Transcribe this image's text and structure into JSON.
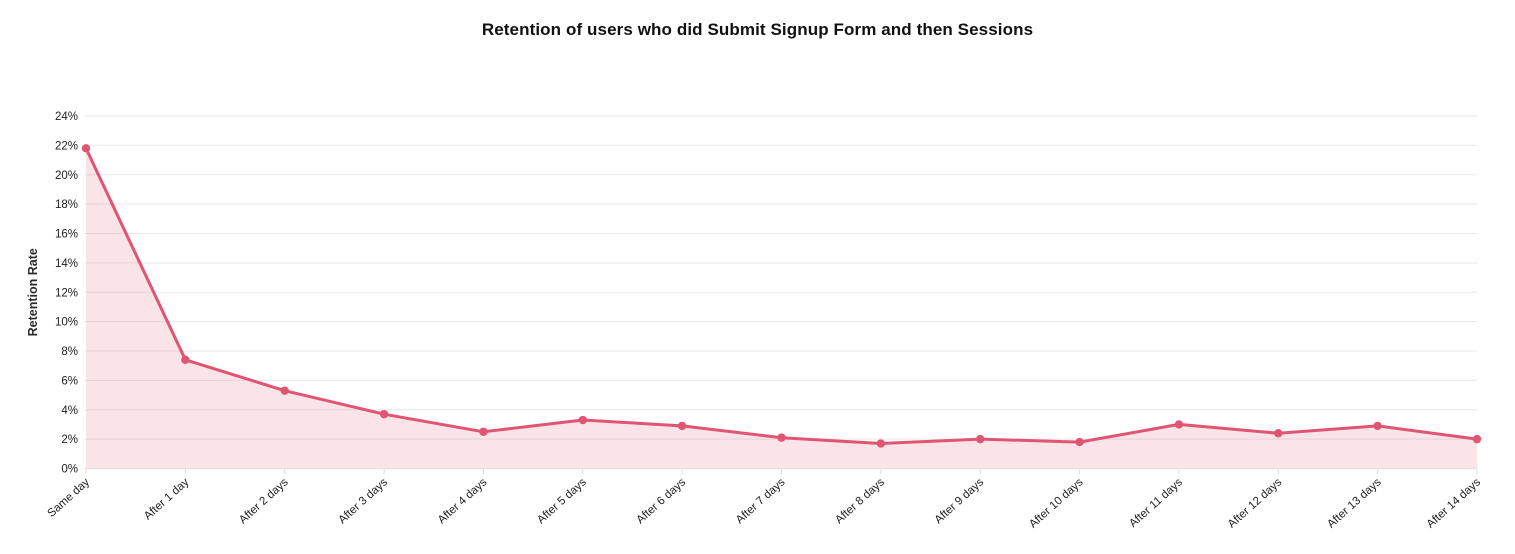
{
  "chart_data": {
    "type": "area",
    "title": "Retention of users who did Submit Signup Form and then Sessions",
    "ylabel": "Retention Rate",
    "xlabel": "",
    "categories": [
      "Same day",
      "After 1 day",
      "After 2 days",
      "After 3 days",
      "After 4 days",
      "After 5 days",
      "After 6 days",
      "After 7 days",
      "After 8 days",
      "After 9 days",
      "After 10 days",
      "After 11 days",
      "After 12 days",
      "After 13 days",
      "After 14 days"
    ],
    "values": [
      21.8,
      7.4,
      5.3,
      3.7,
      2.5,
      3.3,
      2.9,
      2.1,
      1.7,
      2.0,
      1.8,
      3.0,
      2.4,
      2.9,
      2.0
    ],
    "ylim": [
      0,
      24
    ],
    "ytick_step": 2,
    "ytick_suffix": "%",
    "grid": "horizontal",
    "legend": "none",
    "colors": {
      "line": "#e05573",
      "fill": "rgba(224,85,115,0.16)",
      "gridline": "#e9e9e9",
      "tick_mark": "#dddddd",
      "tick_label": "#1d1d1f",
      "title": "#111111"
    }
  }
}
